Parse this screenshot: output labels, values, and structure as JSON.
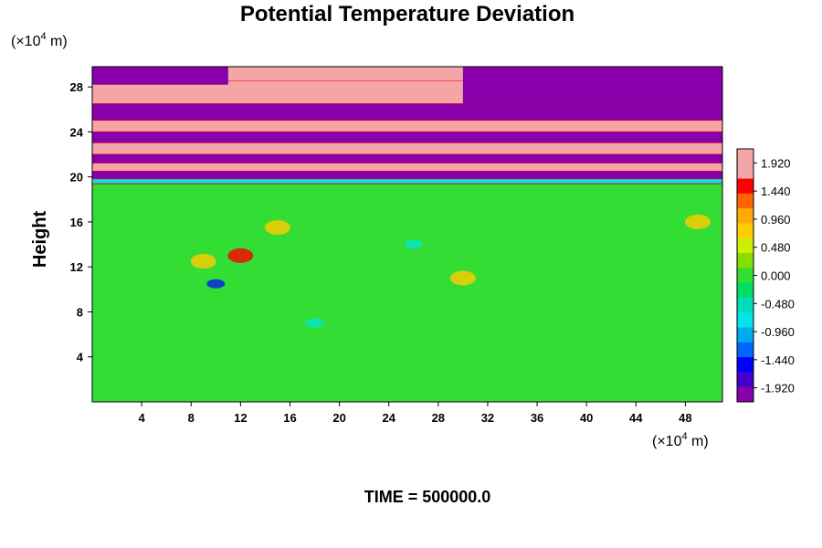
{
  "chart_data": {
    "type": "heatmap",
    "title": "Potential Temperature Deviation",
    "ylabel": "Height",
    "x_unit": "(×10",
    "x_unit_exp": "4",
    "x_unit_tail": " m)",
    "y_unit": "(×10",
    "y_unit_exp": "4",
    "y_unit_tail": " m)",
    "xlim": [
      0,
      51
    ],
    "ylim": [
      0,
      29.8
    ],
    "x_ticks": [
      4,
      8,
      12,
      16,
      20,
      24,
      28,
      32,
      36,
      40,
      44,
      48
    ],
    "y_ticks": [
      4,
      8,
      12,
      16,
      20,
      24,
      28
    ],
    "colorbar": {
      "range": [
        -2.16,
        2.16
      ],
      "tick_values": [
        1.92,
        1.44,
        0.96,
        0.48,
        0.0,
        -0.48,
        -0.96,
        -1.44,
        -1.92
      ],
      "tick_labels": [
        "1.920",
        "1.440",
        "0.960",
        "0.480",
        "0.000",
        "-0.480",
        "-0.960",
        "-1.440",
        "-1.920"
      ]
    },
    "annotation": "TIME = 500000.0",
    "colors": {
      "max": "#f4a6a6",
      "high": "#ff0000",
      "mid_high": "#ffcc00",
      "neutral": "#33dd33",
      "mid_low": "#00e5e5",
      "low": "#0000ff",
      "min": "#8800aa"
    }
  }
}
